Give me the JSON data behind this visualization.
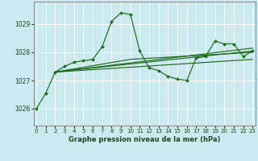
{
  "title": "Graphe pression niveau de la mer (hPa)",
  "background_color": "#cbe9f0",
  "grid_color": "#ffffff",
  "line_color": "#1a6b1a",
  "x_ticks": [
    0,
    1,
    2,
    3,
    4,
    5,
    6,
    7,
    8,
    9,
    10,
    11,
    12,
    13,
    14,
    15,
    16,
    17,
    18,
    19,
    20,
    21,
    22,
    23
  ],
  "y_ticks": [
    1026,
    1027,
    1028,
    1029
  ],
  "ylim": [
    1025.4,
    1029.8
  ],
  "xlim": [
    -0.3,
    23.3
  ],
  "main_x": [
    0,
    1,
    2,
    3,
    4,
    5,
    6,
    7,
    8,
    9,
    10,
    11,
    12,
    13,
    14,
    15,
    16,
    17,
    18,
    19,
    20,
    21,
    22,
    23
  ],
  "main_y": [
    1026.0,
    1026.55,
    1027.3,
    1027.5,
    1027.65,
    1027.7,
    1027.75,
    1028.2,
    1029.1,
    1029.4,
    1029.35,
    1028.05,
    1027.45,
    1027.35,
    1027.15,
    1027.05,
    1027.0,
    1027.8,
    1027.85,
    1028.4,
    1028.3,
    1028.3,
    1027.85,
    1028.05
  ],
  "trend1_x": [
    2,
    23
  ],
  "trend1_y": [
    1027.3,
    1028.05
  ],
  "trend2_x": [
    2,
    23
  ],
  "trend2_y": [
    1027.3,
    1027.75
  ],
  "trend3_x": [
    2,
    23
  ],
  "trend3_y": [
    1027.3,
    1028.15
  ],
  "trend4_x": [
    2,
    10,
    23
  ],
  "trend4_y": [
    1027.3,
    1027.75,
    1028.0
  ]
}
